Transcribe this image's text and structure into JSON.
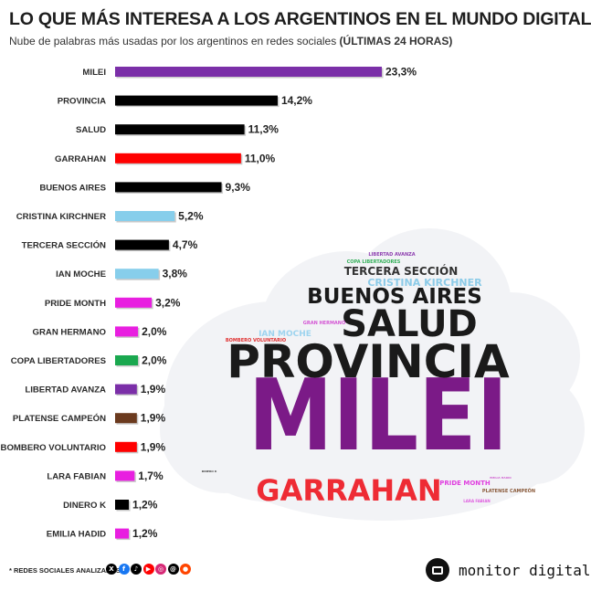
{
  "header": {
    "title": "LO QUE MÁS INTERESA A LOS ARGENTINOS EN EL MUNDO DIGITAL",
    "subtitle_prefix": "Nube de palabras más usadas por los argentinos en redes sociales ",
    "subtitle_bold": "(ÚLTIMAS 24 HORAS)"
  },
  "chart_data": {
    "type": "bar",
    "orientation": "horizontal",
    "categories": [
      "MILEI",
      "PROVINCIA",
      "SALUD",
      "GARRAHAN",
      "BUENOS AIRES",
      "CRISTINA KIRCHNER",
      "TERCERA SECCIÓN",
      "IAN MOCHE",
      "PRIDE MONTH",
      "GRAN HERMANO",
      "COPA LIBERTADORES",
      "LIBERTAD AVANZA",
      "PLATENSE CAMPEÓN",
      "BOMBERO VOLUNTARIO",
      "LARA FABIAN",
      "DINERO K",
      "EMILIA HADID"
    ],
    "values": [
      23.3,
      14.2,
      11.3,
      11.0,
      9.3,
      5.2,
      4.7,
      3.8,
      3.2,
      2.0,
      2.0,
      1.9,
      1.9,
      1.9,
      1.7,
      1.2,
      1.2
    ],
    "value_labels": [
      "23,3%",
      "14,2%",
      "11,3%",
      "11,0%",
      "9,3%",
      "5,2%",
      "4,7%",
      "3,8%",
      "3,2%",
      "2,0%",
      "2,0%",
      "1,9%",
      "1,9%",
      "1,9%",
      "1,7%",
      "1,2%",
      "1,2%"
    ],
    "colors": [
      "#7b2fa8",
      "#000000",
      "#000000",
      "#ff0000",
      "#000000",
      "#87ceeb",
      "#000000",
      "#87ceeb",
      "#e81fe0",
      "#e81fe0",
      "#1aa84f",
      "#7b2fa8",
      "#6b3a1e",
      "#ff0000",
      "#e81fe0",
      "#000000",
      "#e81fe0"
    ],
    "xlim": [
      0,
      23.3
    ],
    "grid": false,
    "legend": "none"
  },
  "wordcloud": {
    "words": [
      {
        "text": "MILEI",
        "color": "#7b1a87"
      },
      {
        "text": "PROVINCIA",
        "color": "#1a1a1a"
      },
      {
        "text": "SALUD",
        "color": "#1a1a1a"
      },
      {
        "text": "BUENOS AIRES",
        "color": "#1a1a1a"
      },
      {
        "text": "GARRAHAN",
        "color": "#ee2b34"
      },
      {
        "text": "TERCERA SECCIÓN",
        "color": "#333333"
      },
      {
        "text": "CRISTINA KIRCHNER",
        "color": "#8ccbe8"
      },
      {
        "text": "IAN MOCHE",
        "color": "#9ed4ef"
      },
      {
        "text": "PRIDE MONTH",
        "color": "#e040e0"
      },
      {
        "text": "GRAN HERMANO",
        "color": "#d455d4"
      },
      {
        "text": "BOMBERO VOLUNTARIO",
        "color": "#e03030"
      },
      {
        "text": "LIBERTAD AVANZA",
        "color": "#8e3fb0"
      },
      {
        "text": "COPA LIBERTADORES",
        "color": "#35b05a"
      },
      {
        "text": "PLATENSE CAMPEÓN",
        "color": "#8a5a3a"
      },
      {
        "text": "LARA FABIAN",
        "color": "#e060e0"
      },
      {
        "text": "EMILIA HADID",
        "color": "#d060d0"
      },
      {
        "text": "DINERO K",
        "color": "#444444"
      }
    ]
  },
  "footer": {
    "note": "* REDES SOCIALES ANALIZADAS",
    "networks": [
      {
        "icon": "x-icon",
        "glyph": "X",
        "color": "#000000"
      },
      {
        "icon": "facebook-icon",
        "glyph": "f",
        "color": "#1877f2"
      },
      {
        "icon": "tiktok-icon",
        "glyph": "♪",
        "color": "#000000"
      },
      {
        "icon": "youtube-icon",
        "glyph": "▶",
        "color": "#ff0000"
      },
      {
        "icon": "instagram-icon",
        "glyph": "◎",
        "color": "#d62976"
      },
      {
        "icon": "threads-icon",
        "glyph": "@",
        "color": "#000000"
      },
      {
        "icon": "reddit-icon",
        "glyph": "●",
        "color": "#ff4500"
      }
    ],
    "brand": "monitor digital"
  }
}
